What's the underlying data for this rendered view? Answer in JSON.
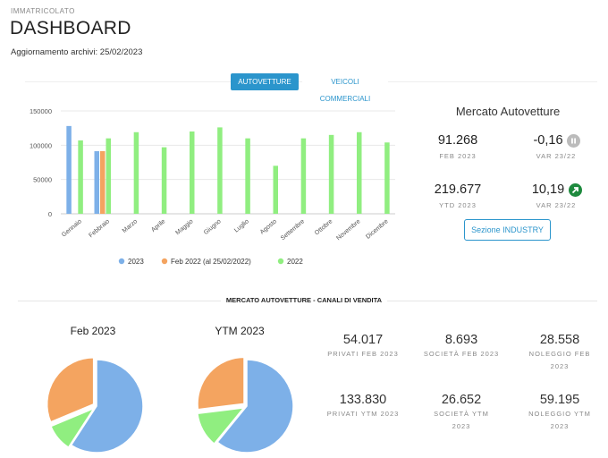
{
  "header": {
    "eyebrow": "IMMATRICOLATO",
    "title": "DASHBOARD",
    "updated": "Aggiornamento archivi: 25/02/2023"
  },
  "tabs": [
    {
      "label": "AUTOVETTURE",
      "active": true
    },
    {
      "label": "VEICOLI COMMERCIALI",
      "active": false
    }
  ],
  "market": {
    "title": "Mercato Autovetture",
    "kpis": [
      {
        "value": "91.268",
        "label": "FEB 2023"
      },
      {
        "value": "-0,16",
        "label": "VAR 23/22",
        "icon": "pause-icon",
        "icon_color": "#bbbbbb"
      },
      {
        "value": "219.677",
        "label": "YTD 2023"
      },
      {
        "value": "10,19",
        "label": "VAR 23/22",
        "icon": "arrow-up-right-icon",
        "icon_color": "#1e8a3e"
      }
    ],
    "button_label": "Sezione INDUSTRY"
  },
  "chart_data": {
    "type": "bar",
    "categories": [
      "Gennaio",
      "Febbraio",
      "Marzo",
      "Aprile",
      "Maggio",
      "Giugno",
      "Luglio",
      "Agosto",
      "Settembre",
      "Ottobre",
      "Novembre",
      "Dicembre"
    ],
    "series": [
      {
        "name": "2023",
        "color": "#7db0e8",
        "values": [
          128000,
          91268,
          null,
          null,
          null,
          null,
          null,
          null,
          null,
          null,
          null,
          null
        ]
      },
      {
        "name": "Feb 2022 (al 25/02/2022)",
        "color": "#f4a460",
        "values": [
          null,
          91400,
          null,
          null,
          null,
          null,
          null,
          null,
          null,
          null,
          null,
          null
        ]
      },
      {
        "name": "2022",
        "color": "#90ee80",
        "values": [
          107000,
          110000,
          119000,
          97000,
          120000,
          126000,
          110000,
          70000,
          110000,
          115000,
          119000,
          104000
        ]
      }
    ],
    "yticks": [
      0,
      50000,
      100000,
      150000
    ],
    "ylim": [
      0,
      150000
    ],
    "grid": true,
    "legend": "bottom"
  },
  "channels": {
    "title": "MERCATO AUTOVETTURE - CANALI DI VENDITA",
    "pies": [
      {
        "title": "Feb 2023",
        "slices": [
          {
            "name": "Privati",
            "value": 54017,
            "color": "#7db0e8"
          },
          {
            "name": "Società",
            "value": 8693,
            "color": "#90ee80"
          },
          {
            "name": "Noleggio",
            "value": 28558,
            "color": "#f4a460"
          }
        ]
      },
      {
        "title": "YTM 2023",
        "slices": [
          {
            "name": "Privati",
            "value": 133830,
            "color": "#7db0e8"
          },
          {
            "name": "Società",
            "value": 26652,
            "color": "#90ee80"
          },
          {
            "name": "Noleggio",
            "value": 59195,
            "color": "#f4a460"
          }
        ]
      }
    ],
    "stats": [
      {
        "value": "54.017",
        "label": "PRIVATI FEB 2023"
      },
      {
        "value": "8.693",
        "label": "SOCIETÀ FEB 2023"
      },
      {
        "value": "28.558",
        "label": "NOLEGGIO FEB 2023"
      },
      {
        "value": "133.830",
        "label": "PRIVATI YTM 2023"
      },
      {
        "value": "26.652",
        "label": "SOCIETÀ YTM 2023"
      },
      {
        "value": "59.195",
        "label": "NOLEGGIO YTM 2023"
      }
    ]
  }
}
